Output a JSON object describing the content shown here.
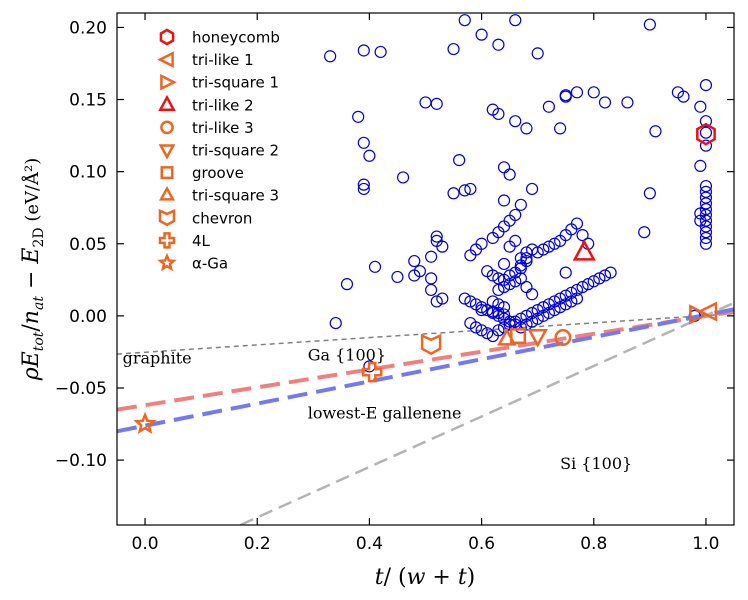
{
  "chart_data": {
    "type": "scatter",
    "xlabel": "t/ (w + t)",
    "ylabel": "ρE_tot/n_at − E_2D (eV/Å²)",
    "xlim": [
      -0.05,
      1.05
    ],
    "ylim": [
      -0.145,
      0.21
    ],
    "xticks": [
      "0.0",
      "0.2",
      "0.4",
      "0.6",
      "0.8",
      "1.0"
    ],
    "xtick_values": [
      0.0,
      0.2,
      0.4,
      0.6,
      0.8,
      1.0
    ],
    "yticks": [
      "−0.10",
      "−0.05",
      "0.00",
      "0.05",
      "0.10",
      "0.15",
      "0.20"
    ],
    "ytick_values": [
      -0.1,
      -0.05,
      0.0,
      0.05,
      0.1,
      0.15,
      0.2
    ],
    "grid": false,
    "legend_position": "top-left",
    "lines": [
      {
        "name": "graphite",
        "color": "#808080",
        "dash": "5,4",
        "width": 1.5,
        "x": [
          -0.05,
          1.05
        ],
        "y": [
          -0.0265,
          0.0015
        ]
      },
      {
        "name": "Ga {100}",
        "color": "#f08080",
        "dash": "20,9",
        "width": 4,
        "x": [
          -0.05,
          1.05
        ],
        "y": [
          -0.065,
          0.003
        ]
      },
      {
        "name": "lowest-E gallenene",
        "color": "#7878ee",
        "dash": "20,9",
        "width": 4,
        "x": [
          -0.05,
          1.05
        ],
        "y": [
          -0.08,
          0.0045
        ]
      },
      {
        "name": "Si {100}",
        "color": "#b4b4b4",
        "dash": "14,7",
        "width": 2.5,
        "x": [
          0.17,
          1.05
        ],
        "y": [
          -0.145,
          0.009
        ]
      }
    ],
    "annotations": [
      {
        "text": "graphite",
        "x": -0.04,
        "y": -0.033
      },
      {
        "text": "Ga {100}",
        "x": 0.29,
        "y": -0.031
      },
      {
        "text": "lowest-E gallenene",
        "x": 0.29,
        "y": -0.071
      },
      {
        "text": "Si {100}",
        "x": 0.74,
        "y": -0.106
      }
    ],
    "background_points": {
      "color": "#0000dd",
      "x": [
        0.33,
        0.39,
        0.42,
        0.55,
        0.57,
        0.63,
        0.7,
        0.9,
        0.6,
        0.66,
        0.52,
        0.38,
        0.39,
        0.5,
        0.56,
        0.75,
        0.8,
        0.82,
        0.86,
        0.95,
        0.62,
        0.63,
        0.66,
        0.68,
        0.72,
        0.74,
        0.75,
        0.77,
        0.91,
        0.96,
        0.99,
        1.0,
        1.0,
        1.0,
        1.0,
        0.57,
        0.64,
        0.65,
        0.39,
        0.39,
        0.46,
        0.99,
        0.4,
        0.55,
        0.58,
        0.64,
        0.67,
        0.69,
        0.52,
        0.52,
        0.53,
        0.51,
        0.48,
        0.49,
        0.45,
        0.48,
        0.36,
        0.41,
        0.51,
        0.53,
        0.9,
        0.89,
        0.99,
        0.99,
        1.0,
        1.0,
        1.0,
        1.0,
        1.0,
        1.0,
        1.0,
        1.0,
        1.0,
        1.0,
        1.0,
        0.51,
        0.52,
        0.61,
        0.62,
        0.63,
        0.64,
        0.65,
        0.66,
        0.67,
        0.68,
        0.69,
        0.7,
        0.71,
        0.72,
        0.73,
        0.74,
        0.75,
        0.76,
        0.77,
        0.78,
        0.79,
        0.64,
        0.65,
        0.66,
        0.67,
        0.68,
        0.63,
        0.64,
        0.65,
        0.66,
        0.67,
        0.68,
        0.69,
        0.62,
        0.63,
        0.64,
        0.6,
        0.62,
        0.63,
        0.64,
        0.57,
        0.58,
        0.59,
        0.6,
        0.61,
        0.62,
        0.63,
        0.64,
        0.65,
        0.66,
        0.67,
        0.68,
        0.69,
        0.7,
        0.71,
        0.72,
        0.73,
        0.74,
        0.75,
        0.76,
        0.77,
        0.58,
        0.59,
        0.6,
        0.61,
        0.62,
        0.63,
        0.64,
        0.65,
        0.66,
        0.67,
        0.68,
        0.69,
        0.7,
        0.71,
        0.72,
        0.73,
        0.74,
        0.75,
        0.76,
        0.77,
        0.78,
        0.79,
        0.8,
        0.81,
        0.82,
        0.83,
        0.58,
        0.59,
        0.6,
        0.62,
        0.63,
        0.64,
        0.65,
        0.66,
        0.67,
        0.68,
        0.34,
        0.4,
        0.75,
        0.98
      ],
      "y": [
        0.18,
        0.184,
        0.183,
        0.185,
        0.205,
        0.188,
        0.182,
        0.202,
        0.195,
        0.205,
        0.147,
        0.138,
        0.12,
        0.148,
        0.108,
        0.152,
        0.155,
        0.148,
        0.148,
        0.155,
        0.143,
        0.14,
        0.135,
        0.13,
        0.145,
        0.13,
        0.153,
        0.155,
        0.128,
        0.152,
        0.145,
        0.16,
        0.135,
        0.127,
        0.118,
        0.087,
        0.103,
        0.098,
        0.091,
        0.088,
        0.096,
        0.104,
        0.111,
        0.085,
        0.088,
        0.08,
        0.077,
        0.088,
        0.052,
        0.055,
        0.048,
        0.041,
        0.038,
        0.031,
        0.027,
        0.028,
        0.022,
        0.034,
        0.026,
        0.012,
        0.085,
        0.058,
        0.071,
        0.066,
        0.082,
        0.078,
        0.074,
        0.07,
        0.066,
        0.062,
        0.058,
        0.054,
        0.05,
        0.086,
        0.09,
        0.018,
        0.01,
        0.031,
        0.028,
        0.026,
        0.036,
        0.048,
        0.052,
        0.04,
        0.044,
        0.046,
        0.044,
        0.046,
        0.048,
        0.05,
        0.052,
        0.056,
        0.06,
        0.064,
        0.056,
        0.05,
        0.025,
        0.028,
        0.03,
        0.033,
        0.038,
        0.018,
        0.02,
        0.022,
        0.024,
        0.026,
        0.02,
        0.015,
        0.01,
        0.008,
        0.006,
        0.004,
        0.003,
        0.002,
        0.001,
        0.012,
        0.01,
        0.008,
        0.006,
        0.004,
        0.002,
        0.0,
        -0.002,
        -0.004,
        -0.006,
        -0.008,
        -0.006,
        -0.004,
        -0.002,
        0.0,
        0.002,
        0.004,
        0.006,
        0.008,
        0.01,
        0.012,
        -0.005,
        -0.008,
        -0.01,
        -0.012,
        -0.014,
        -0.01,
        -0.008,
        -0.006,
        -0.004,
        -0.002,
        0.0,
        0.002,
        0.004,
        0.006,
        0.008,
        0.01,
        0.012,
        0.014,
        0.016,
        0.018,
        0.02,
        0.022,
        0.024,
        0.026,
        0.028,
        0.03,
        0.042,
        0.046,
        0.05,
        0.054,
        0.058,
        0.062,
        0.066,
        0.07,
        0.035,
        0.04,
        -0.005,
        -0.035,
        0.03,
        0.0
      ]
    },
    "special_series": [
      {
        "name": "honeycomb",
        "marker": "hexagon",
        "color": "#ee1111",
        "x": [
          1.0
        ],
        "y": [
          0.126
        ]
      },
      {
        "name": "tri-like 1",
        "marker": "triangle-left",
        "color": "#ee6622",
        "x": [
          1.005
        ],
        "y": [
          0.003
        ]
      },
      {
        "name": "tri-square 1",
        "marker": "triangle-right",
        "color": "#ee6622",
        "x": [
          0.985
        ],
        "y": [
          0.001
        ]
      },
      {
        "name": "tri-like 2",
        "marker": "triangle-up",
        "color": "#ee1111",
        "x": [
          0.783
        ],
        "y": [
          0.044
        ]
      },
      {
        "name": "tri-like 3",
        "marker": "circle",
        "color": "#ee6622",
        "x": [
          0.745
        ],
        "y": [
          -0.015
        ]
      },
      {
        "name": "tri-square 2",
        "marker": "triangle-down",
        "color": "#ee6622",
        "x": [
          0.7
        ],
        "y": [
          -0.014
        ]
      },
      {
        "name": "groove",
        "marker": "square",
        "color": "#ee6622",
        "x": [
          0.665
        ],
        "y": [
          -0.014
        ]
      },
      {
        "name": "tri-square 3",
        "marker": "triangle-up-small",
        "color": "#ee6622",
        "x": [
          0.645
        ],
        "y": [
          -0.016
        ]
      },
      {
        "name": "chevron",
        "marker": "chevron",
        "color": "#ee6622",
        "x": [
          0.51
        ],
        "y": [
          -0.02
        ]
      },
      {
        "name": "4L",
        "marker": "plus",
        "color": "#ee6622",
        "x": [
          0.405
        ],
        "y": [
          -0.039
        ]
      },
      {
        "name": "α-Ga",
        "marker": "star",
        "color": "#ee6622",
        "x": [
          0.0
        ],
        "y": [
          -0.075
        ]
      }
    ]
  }
}
